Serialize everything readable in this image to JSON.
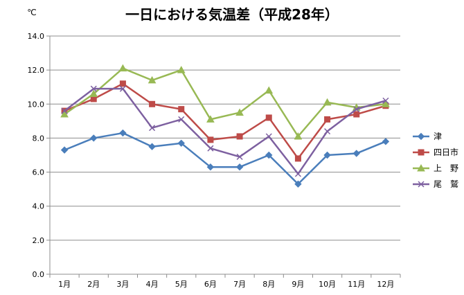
{
  "chart_data": {
    "type": "line",
    "title": "一日における気温差（平成28年）",
    "ylabel": "℃",
    "xlabel": "",
    "categories": [
      "1月",
      "2月",
      "3月",
      "4月",
      "5月",
      "6月",
      "7月",
      "8月",
      "9月",
      "10月",
      "11月",
      "12月"
    ],
    "ylim": [
      0,
      14
    ],
    "yticks": [
      "0.0",
      "2.0",
      "4.0",
      "6.0",
      "8.0",
      "10.0",
      "12.0",
      "14.0"
    ],
    "grid": true,
    "legend_position": "right",
    "series": [
      {
        "name": "津",
        "color": "#4a7ebb",
        "marker": "diamond",
        "values": [
          7.3,
          8.0,
          8.3,
          7.5,
          7.7,
          6.3,
          6.3,
          7.0,
          5.3,
          7.0,
          7.1,
          7.8
        ]
      },
      {
        "name": "四日市",
        "color": "#be4b48",
        "marker": "square",
        "values": [
          9.6,
          10.3,
          11.2,
          10.0,
          9.7,
          7.9,
          8.1,
          9.2,
          6.8,
          9.1,
          9.4,
          9.9
        ]
      },
      {
        "name": "上　野",
        "color": "#98b954",
        "marker": "triangle",
        "values": [
          9.4,
          10.6,
          12.1,
          11.4,
          12.0,
          9.1,
          9.5,
          10.8,
          8.1,
          10.1,
          9.8,
          10.0
        ]
      },
      {
        "name": "尾　鷲",
        "color": "#7d60a0",
        "marker": "x",
        "values": [
          9.6,
          10.9,
          10.9,
          8.6,
          9.1,
          7.4,
          6.9,
          8.1,
          5.9,
          8.4,
          9.7,
          10.2
        ]
      }
    ]
  }
}
